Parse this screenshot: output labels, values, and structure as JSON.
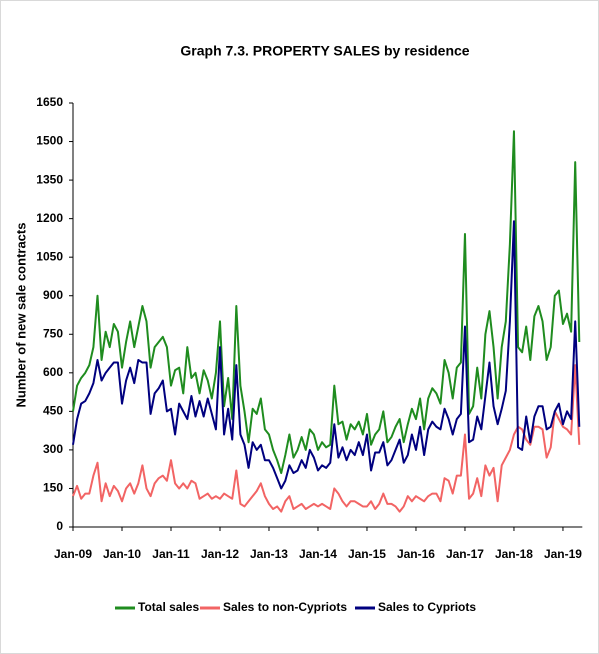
{
  "chart_data": {
    "type": "line",
    "title": "Graph 7.3. PROPERTY SALES by residence",
    "y_label": "Number of new sale contracts",
    "categories": [
      "Jan-09",
      null,
      null,
      null,
      null,
      null,
      null,
      null,
      null,
      null,
      null,
      null,
      "Jan-10",
      null,
      null,
      null,
      null,
      null,
      null,
      null,
      null,
      null,
      null,
      null,
      "Jan-11",
      null,
      null,
      null,
      null,
      null,
      null,
      null,
      null,
      null,
      null,
      null,
      "Jan-12",
      null,
      null,
      null,
      null,
      null,
      null,
      null,
      null,
      null,
      null,
      null,
      "Jan-13",
      null,
      null,
      null,
      null,
      null,
      null,
      null,
      null,
      null,
      null,
      null,
      "Jan-14",
      null,
      null,
      null,
      null,
      null,
      null,
      null,
      null,
      null,
      null,
      null,
      "Jan-15",
      null,
      null,
      null,
      null,
      null,
      null,
      null,
      null,
      null,
      null,
      null,
      "Jan-16",
      null,
      null,
      null,
      null,
      null,
      null,
      null,
      null,
      null,
      null,
      null,
      "Jan-17",
      null,
      null,
      null,
      null,
      null,
      null,
      null,
      null,
      null,
      null,
      null,
      "Jan-18",
      null,
      null,
      null,
      null,
      null,
      null,
      null,
      null,
      null,
      null,
      null,
      "Jan-19",
      null,
      null,
      null,
      null
    ],
    "series": [
      {
        "name": "Total sales",
        "color": "#1f8c1f",
        "values": [
          450,
          550,
          580,
          600,
          630,
          700,
          900,
          650,
          760,
          700,
          790,
          760,
          620,
          720,
          800,
          700,
          780,
          860,
          800,
          620,
          700,
          720,
          740,
          700,
          550,
          610,
          620,
          520,
          700,
          580,
          600,
          520,
          610,
          570,
          500,
          600,
          800,
          470,
          580,
          420,
          860,
          550,
          450,
          330,
          460,
          440,
          500,
          380,
          360,
          300,
          260,
          210,
          280,
          360,
          270,
          300,
          350,
          300,
          380,
          360,
          300,
          330,
          310,
          320,
          550,
          400,
          410,
          340,
          400,
          380,
          410,
          360,
          440,
          320,
          360,
          380,
          450,
          330,
          350,
          390,
          420,
          330,
          400,
          460,
          420,
          500,
          380,
          500,
          540,
          520,
          480,
          650,
          600,
          500,
          620,
          640,
          1140,
          440,
          470,
          620,
          500,
          750,
          840,
          700,
          500,
          700,
          800,
          1100,
          1540,
          700,
          680,
          780,
          650,
          820,
          860,
          800,
          650,
          700,
          900,
          920,
          790,
          830,
          760,
          1420,
          720
        ]
      },
      {
        "name": "Sales to non-Cypriots",
        "color": "#f26464",
        "values": [
          120,
          160,
          110,
          130,
          130,
          200,
          250,
          100,
          170,
          120,
          160,
          140,
          100,
          150,
          170,
          130,
          170,
          240,
          150,
          120,
          170,
          190,
          200,
          180,
          260,
          170,
          150,
          170,
          150,
          180,
          170,
          110,
          120,
          130,
          110,
          120,
          110,
          130,
          120,
          110,
          220,
          90,
          80,
          100,
          120,
          140,
          170,
          120,
          90,
          70,
          80,
          60,
          100,
          120,
          70,
          80,
          90,
          70,
          80,
          90,
          80,
          90,
          80,
          70,
          150,
          130,
          100,
          80,
          100,
          100,
          90,
          80,
          80,
          100,
          70,
          90,
          130,
          90,
          90,
          80,
          60,
          80,
          120,
          100,
          120,
          110,
          100,
          120,
          130,
          130,
          100,
          190,
          180,
          130,
          200,
          200,
          360,
          110,
          130,
          190,
          120,
          240,
          200,
          230,
          100,
          240,
          270,
          300,
          360,
          390,
          380,
          340,
          320,
          390,
          390,
          380,
          270,
          310,
          450,
          420,
          390,
          380,
          360,
          630,
          320
        ]
      },
      {
        "name": "Sales to Cypriots",
        "color": "#00007f",
        "values": [
          320,
          420,
          480,
          490,
          520,
          560,
          650,
          570,
          600,
          620,
          640,
          640,
          480,
          570,
          620,
          560,
          650,
          640,
          640,
          440,
          520,
          540,
          570,
          450,
          460,
          360,
          480,
          450,
          420,
          510,
          430,
          490,
          430,
          500,
          440,
          380,
          700,
          360,
          460,
          340,
          630,
          360,
          320,
          230,
          330,
          300,
          320,
          260,
          260,
          230,
          190,
          150,
          180,
          240,
          210,
          220,
          260,
          230,
          300,
          270,
          220,
          240,
          230,
          250,
          400,
          270,
          310,
          260,
          300,
          280,
          330,
          280,
          360,
          220,
          290,
          290,
          330,
          240,
          260,
          300,
          340,
          250,
          280,
          360,
          300,
          390,
          280,
          380,
          410,
          390,
          380,
          460,
          420,
          360,
          420,
          440,
          780,
          330,
          340,
          430,
          380,
          510,
          640,
          470,
          400,
          460,
          530,
          800,
          1190,
          310,
          300,
          430,
          330,
          430,
          470,
          470,
          380,
          390,
          450,
          480,
          400,
          450,
          420,
          800,
          390
        ]
      }
    ],
    "ylim": [
      0,
      1650
    ],
    "yticks": [
      0,
      150,
      300,
      450,
      600,
      750,
      900,
      1050,
      1200,
      1350,
      1500,
      1650
    ],
    "legend": "bottom"
  }
}
